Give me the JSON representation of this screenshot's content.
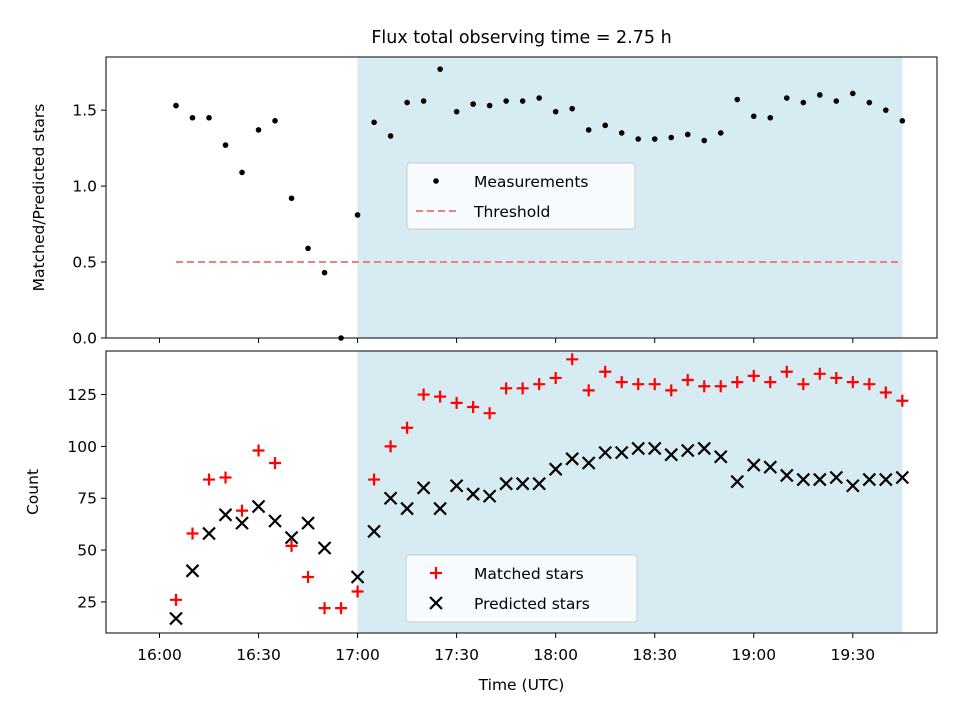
{
  "chart_data": [
    {
      "type": "scatter",
      "title": "Flux total observing time = 2.75 h",
      "xlabel": "",
      "ylabel": "Matched/Predicted stars",
      "ylim": [
        0,
        1.85
      ],
      "yticks": [
        0.0,
        0.5,
        1.0,
        1.5
      ],
      "ytick_labels": [
        "0.0",
        "0.5",
        "1.0",
        "1.5"
      ],
      "shaded_interval": {
        "start": "17:00",
        "end": "19:45",
        "color": "#add8e6"
      },
      "threshold": {
        "name": "Threshold",
        "value": 0.5,
        "from": "16:05",
        "to": "19:45",
        "color": "#f08080"
      },
      "legend": {
        "position": "center",
        "entries": [
          "Measurements",
          "Threshold"
        ]
      },
      "series": [
        {
          "name": "Measurements",
          "color": "#000000",
          "marker": "dot",
          "x": [
            "16:05",
            "16:10",
            "16:15",
            "16:20",
            "16:25",
            "16:30",
            "16:35",
            "16:40",
            "16:45",
            "16:50",
            "16:55",
            "17:00",
            "17:05",
            "17:10",
            "17:15",
            "17:20",
            "17:25",
            "17:30",
            "17:35",
            "17:40",
            "17:45",
            "17:50",
            "17:55",
            "18:00",
            "18:05",
            "18:10",
            "18:15",
            "18:20",
            "18:25",
            "18:30",
            "18:35",
            "18:40",
            "18:45",
            "18:50",
            "18:55",
            "19:00",
            "19:05",
            "19:10",
            "19:15",
            "19:20",
            "19:25",
            "19:30",
            "19:35",
            "19:40",
            "19:45"
          ],
          "values": [
            1.53,
            1.45,
            1.45,
            1.27,
            1.09,
            1.37,
            1.43,
            0.92,
            0.59,
            0.43,
            0.0,
            0.81,
            1.42,
            1.33,
            1.55,
            1.56,
            1.77,
            1.49,
            1.54,
            1.53,
            1.56,
            1.56,
            1.58,
            1.49,
            1.51,
            1.37,
            1.4,
            1.35,
            1.31,
            1.31,
            1.32,
            1.34,
            1.3,
            1.35,
            1.57,
            1.46,
            1.45,
            1.58,
            1.55,
            1.6,
            1.56,
            1.61,
            1.55,
            1.5,
            1.43
          ]
        }
      ]
    },
    {
      "type": "scatter",
      "xlabel": "Time (UTC)",
      "ylabel": "Count",
      "ylim": [
        10,
        146
      ],
      "yticks": [
        25,
        50,
        75,
        100,
        125
      ],
      "ytick_labels": [
        "25",
        "50",
        "75",
        "100",
        "125"
      ],
      "x_tick_labels": [
        "16:00",
        "16:30",
        "17:00",
        "17:30",
        "18:00",
        "18:30",
        "19:00",
        "19:30"
      ],
      "shaded_interval": {
        "start": "17:00",
        "end": "19:45",
        "color": "#add8e6"
      },
      "legend": {
        "position": "lower center",
        "entries": [
          "Matched stars",
          "Predicted stars"
        ]
      },
      "series": [
        {
          "name": "Matched stars",
          "color": "#ff0000",
          "marker": "plus",
          "x": [
            "16:05",
            "16:10",
            "16:15",
            "16:20",
            "16:25",
            "16:30",
            "16:35",
            "16:40",
            "16:45",
            "16:50",
            "16:55",
            "17:00",
            "17:05",
            "17:10",
            "17:15",
            "17:20",
            "17:25",
            "17:30",
            "17:35",
            "17:40",
            "17:45",
            "17:50",
            "17:55",
            "18:00",
            "18:05",
            "18:10",
            "18:15",
            "18:20",
            "18:25",
            "18:30",
            "18:35",
            "18:40",
            "18:45",
            "18:50",
            "18:55",
            "19:00",
            "19:05",
            "19:10",
            "19:15",
            "19:20",
            "19:25",
            "19:30",
            "19:35",
            "19:40",
            "19:45"
          ],
          "values": [
            26,
            58,
            84,
            85,
            69,
            98,
            92,
            52,
            37,
            22,
            22,
            30,
            84,
            100,
            109,
            125,
            124,
            121,
            119,
            116,
            128,
            128,
            130,
            133,
            142,
            127,
            136,
            131,
            130,
            130,
            127,
            132,
            129,
            129,
            131,
            134,
            131,
            136,
            130,
            135,
            133,
            131,
            130,
            126,
            122
          ]
        },
        {
          "name": "Predicted stars",
          "color": "#000000",
          "marker": "x",
          "x": [
            "16:05",
            "16:10",
            "16:15",
            "16:20",
            "16:25",
            "16:30",
            "16:35",
            "16:40",
            "16:45",
            "16:50",
            "17:00",
            "17:05",
            "17:10",
            "17:15",
            "17:20",
            "17:25",
            "17:30",
            "17:35",
            "17:40",
            "17:45",
            "17:50",
            "17:55",
            "18:00",
            "18:05",
            "18:10",
            "18:15",
            "18:20",
            "18:25",
            "18:30",
            "18:35",
            "18:40",
            "18:45",
            "18:50",
            "18:55",
            "19:00",
            "19:05",
            "19:10",
            "19:15",
            "19:20",
            "19:25",
            "19:30",
            "19:35",
            "19:40",
            "19:45"
          ],
          "values": [
            17,
            40,
            58,
            67,
            63,
            71,
            64,
            56,
            63,
            51,
            37,
            59,
            75,
            70,
            80,
            70,
            81,
            77,
            76,
            82,
            82,
            82,
            89,
            94,
            92,
            97,
            97,
            99,
            99,
            96,
            98,
            99,
            95,
            83,
            91,
            90,
            86,
            84,
            84,
            85,
            81,
            84,
            84,
            85
          ]
        }
      ]
    }
  ]
}
